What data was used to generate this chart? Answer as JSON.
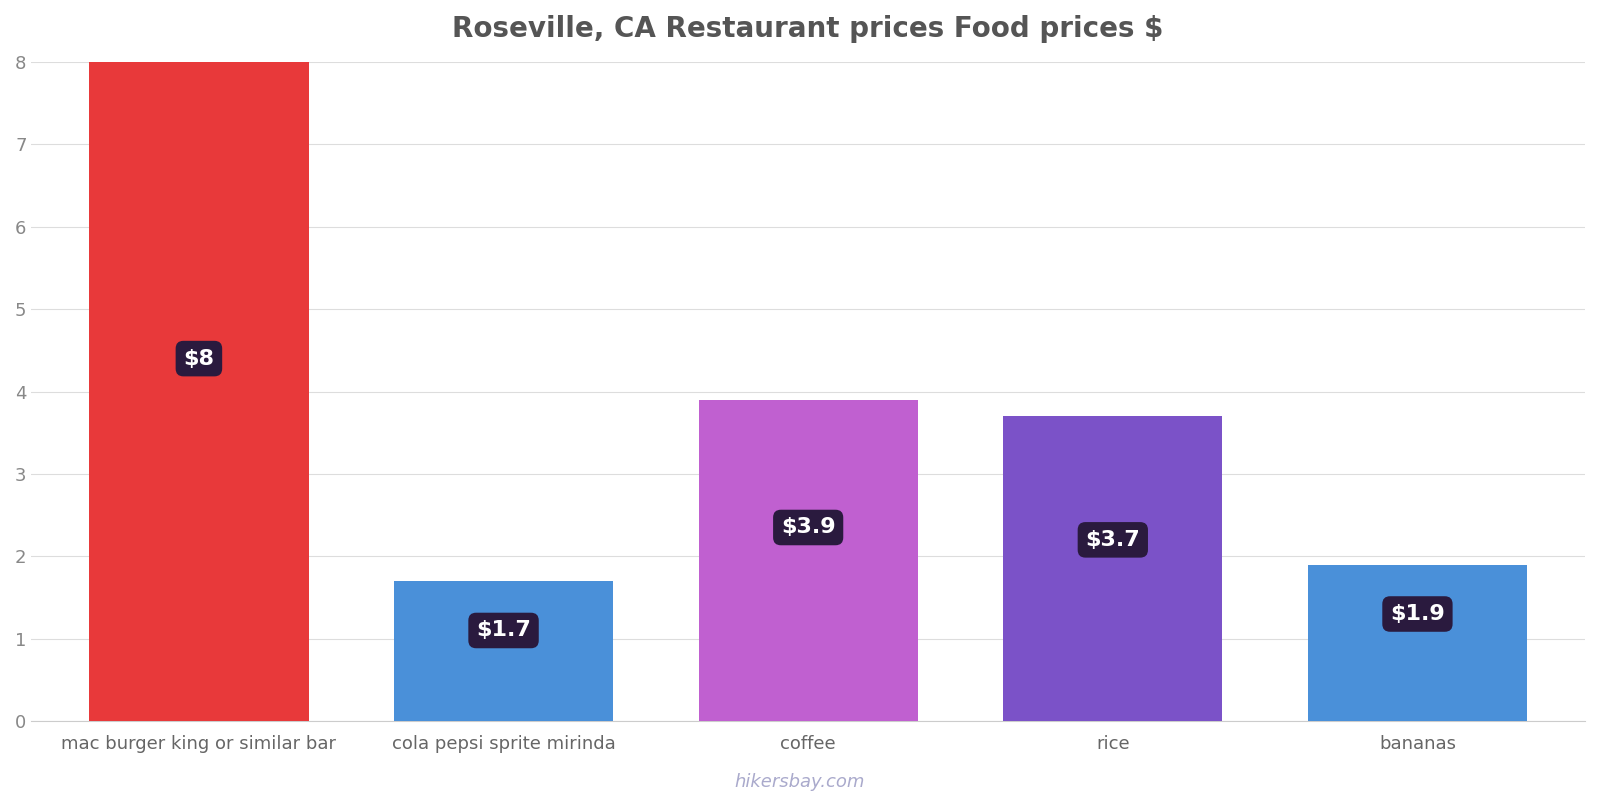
{
  "title": "Roseville, CA Restaurant prices Food prices $",
  "categories": [
    "mac burger king or similar bar",
    "cola pepsi sprite mirinda",
    "coffee",
    "rice",
    "bananas"
  ],
  "values": [
    8.0,
    1.7,
    3.9,
    3.7,
    1.9
  ],
  "bar_colors": [
    "#e8393a",
    "#4a90d9",
    "#c060d0",
    "#7b52c8",
    "#4a90d9"
  ],
  "label_texts": [
    "$8",
    "$1.7",
    "$3.9",
    "$3.7",
    "$1.9"
  ],
  "label_box_color": "#2a1a3e",
  "label_text_color": "#ffffff",
  "ylim": [
    0,
    8
  ],
  "yticks": [
    0,
    1,
    2,
    3,
    4,
    5,
    6,
    7,
    8
  ],
  "title_fontsize": 20,
  "tick_fontsize": 13,
  "label_fontsize": 16,
  "watermark": "hikersbay.com",
  "background_color": "#ffffff",
  "grid_color": "#dddddd",
  "bar_width": 0.72,
  "label_y_positions": [
    4.4,
    1.1,
    2.35,
    2.2,
    1.3
  ]
}
